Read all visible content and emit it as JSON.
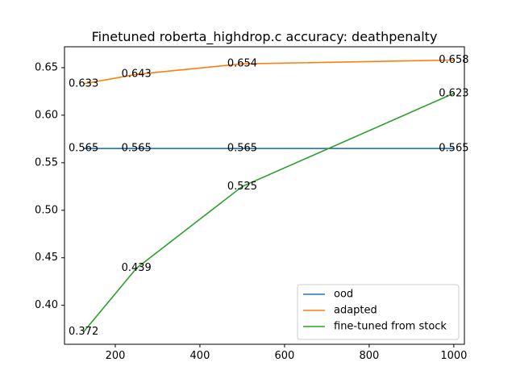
{
  "chart_data": {
    "type": "line",
    "title": "Finetuned roberta_highdrop.c accuracy: deathpenalty",
    "xlabel": "",
    "ylabel": "",
    "xlim": [
      80,
      1025
    ],
    "ylim": [
      0.359,
      0.672
    ],
    "xticks": [
      200,
      400,
      600,
      800,
      1000
    ],
    "yticks": [
      0.4,
      0.45,
      0.5,
      0.55,
      0.6,
      0.65
    ],
    "xtick_labels": [
      "200",
      "400",
      "600",
      "800",
      "1000"
    ],
    "ytick_labels": [
      "0.40",
      "0.45",
      "0.50",
      "0.55",
      "0.60",
      "0.65"
    ],
    "grid": false,
    "legend_position": "lower-right",
    "series": [
      {
        "name": "ood",
        "color": "#1f77b4",
        "x": [
          125,
          250,
          500,
          1000
        ],
        "y": [
          0.565,
          0.565,
          0.565,
          0.565
        ],
        "labels": [
          "0.565",
          "0.565",
          "0.565",
          "0.565"
        ]
      },
      {
        "name": "adapted",
        "color": "#ff7f0e",
        "x": [
          125,
          250,
          500,
          1000
        ],
        "y": [
          0.633,
          0.643,
          0.654,
          0.658
        ],
        "labels": [
          "0.633",
          "0.643",
          "0.654",
          "0.658"
        ]
      },
      {
        "name": "fine-tuned from stock",
        "color": "#2ca02c",
        "x": [
          125,
          250,
          500,
          1000
        ],
        "y": [
          0.372,
          0.439,
          0.525,
          0.623
        ],
        "labels": [
          "0.372",
          "0.439",
          "0.525",
          "0.623"
        ]
      }
    ]
  }
}
